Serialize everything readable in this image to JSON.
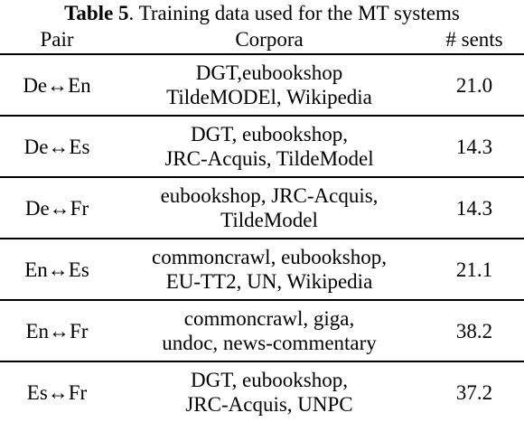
{
  "caption": {
    "label": "Table 5",
    "text": ". Training data used for the MT systems"
  },
  "headers": {
    "pair": "Pair",
    "corpora": "Corpora",
    "sents": "# sents"
  },
  "rows": [
    {
      "pair": "De↔En",
      "corpora": [
        "DGT,eubookshop",
        "TildeMODEl, Wikipedia"
      ],
      "sents": "21.0"
    },
    {
      "pair": "De↔Es",
      "corpora": [
        "DGT, eubookshop,",
        "JRC-Acquis, TildeModel"
      ],
      "sents": "14.3"
    },
    {
      "pair": "De↔Fr",
      "corpora": [
        "eubookshop, JRC-Acquis,",
        "TildeModel"
      ],
      "sents": "14.3"
    },
    {
      "pair": "En↔Es",
      "corpora": [
        "commoncrawl, eubookshop,",
        "EU-TT2, UN, Wikipedia"
      ],
      "sents": "21.1"
    },
    {
      "pair": "En↔Fr",
      "corpora": [
        "commoncrawl, giga,",
        "undoc, news-commentary"
      ],
      "sents": "38.2"
    },
    {
      "pair": "Es↔Fr",
      "corpora": [
        "DGT, eubookshop,",
        "JRC-Acquis, UNPC"
      ],
      "sents": "37.2"
    }
  ]
}
